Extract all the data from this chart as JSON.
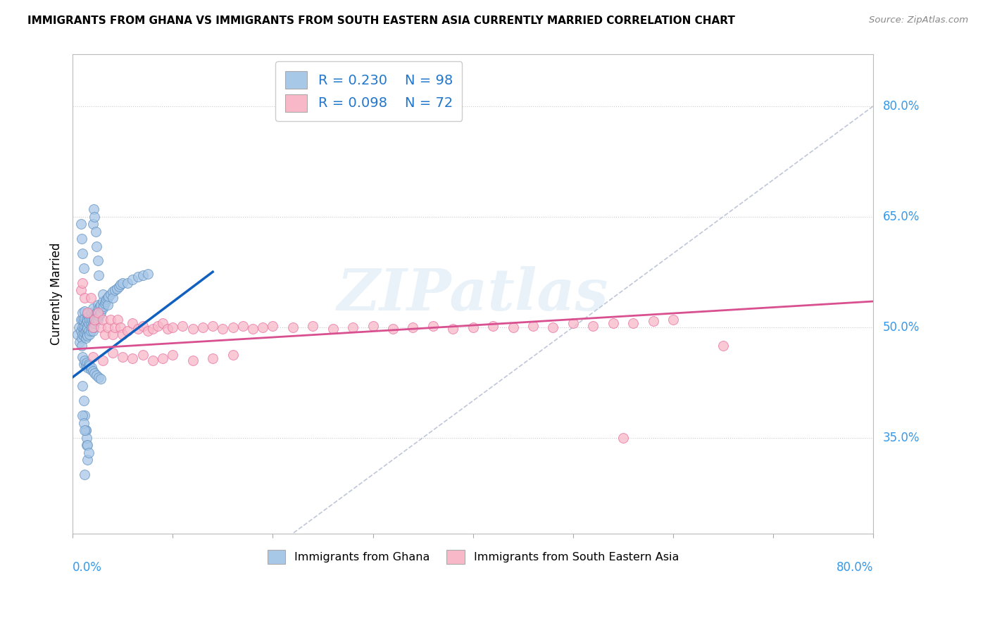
{
  "title": "IMMIGRANTS FROM GHANA VS IMMIGRANTS FROM SOUTH EASTERN ASIA CURRENTLY MARRIED CORRELATION CHART",
  "source": "Source: ZipAtlas.com",
  "ylabel": "Currently Married",
  "y_tick_labels": [
    "35.0%",
    "50.0%",
    "65.0%",
    "80.0%"
  ],
  "y_tick_values": [
    0.35,
    0.5,
    0.65,
    0.8
  ],
  "xlim": [
    0.0,
    0.8
  ],
  "ylim": [
    0.22,
    0.87
  ],
  "legend1_R": "0.230",
  "legend1_N": "98",
  "legend2_R": "0.098",
  "legend2_N": "72",
  "color_blue": "#a8c8e8",
  "color_pink": "#f8b8c8",
  "color_blue_edge": "#6090c0",
  "color_pink_edge": "#e870a0",
  "color_trendline_blue": "#1060c0",
  "color_trendline_pink": "#d85090",
  "color_diag": "#b0b8d0",
  "watermark": "ZIPatlas",
  "legend_label_1": "Immigrants from Ghana",
  "legend_label_2": "Immigrants from South Eastern Asia",
  "ghana_x": [
    0.005,
    0.006,
    0.007,
    0.008,
    0.008,
    0.009,
    0.009,
    0.01,
    0.01,
    0.01,
    0.01,
    0.011,
    0.011,
    0.011,
    0.012,
    0.012,
    0.012,
    0.012,
    0.013,
    0.013,
    0.013,
    0.014,
    0.014,
    0.014,
    0.015,
    0.015,
    0.015,
    0.015,
    0.016,
    0.016,
    0.016,
    0.017,
    0.017,
    0.018,
    0.018,
    0.018,
    0.019,
    0.019,
    0.019,
    0.02,
    0.02,
    0.02,
    0.02,
    0.021,
    0.021,
    0.022,
    0.022,
    0.023,
    0.023,
    0.024,
    0.024,
    0.025,
    0.025,
    0.025,
    0.026,
    0.026,
    0.027,
    0.027,
    0.028,
    0.028,
    0.03,
    0.03,
    0.03,
    0.031,
    0.032,
    0.033,
    0.034,
    0.035,
    0.035,
    0.036,
    0.038,
    0.04,
    0.04,
    0.042,
    0.044,
    0.046,
    0.048,
    0.05,
    0.055,
    0.06,
    0.065,
    0.07,
    0.075,
    0.01,
    0.011,
    0.012,
    0.013,
    0.014,
    0.015,
    0.016,
    0.017,
    0.018,
    0.019,
    0.02,
    0.022,
    0.024,
    0.026,
    0.028
  ],
  "ghana_y": [
    0.49,
    0.5,
    0.48,
    0.51,
    0.495,
    0.485,
    0.475,
    0.5,
    0.49,
    0.51,
    0.52,
    0.488,
    0.498,
    0.508,
    0.492,
    0.502,
    0.512,
    0.522,
    0.485,
    0.495,
    0.505,
    0.49,
    0.5,
    0.51,
    0.488,
    0.498,
    0.508,
    0.518,
    0.495,
    0.505,
    0.515,
    0.49,
    0.51,
    0.495,
    0.505,
    0.515,
    0.5,
    0.51,
    0.52,
    0.495,
    0.505,
    0.515,
    0.525,
    0.5,
    0.51,
    0.505,
    0.515,
    0.508,
    0.518,
    0.51,
    0.52,
    0.51,
    0.52,
    0.53,
    0.515,
    0.525,
    0.518,
    0.528,
    0.52,
    0.53,
    0.525,
    0.535,
    0.545,
    0.528,
    0.532,
    0.535,
    0.538,
    0.54,
    0.53,
    0.542,
    0.545,
    0.548,
    0.54,
    0.55,
    0.552,
    0.555,
    0.558,
    0.56,
    0.56,
    0.565,
    0.568,
    0.57,
    0.572,
    0.46,
    0.45,
    0.455,
    0.448,
    0.452,
    0.445,
    0.45,
    0.448,
    0.442,
    0.445,
    0.44,
    0.438,
    0.435,
    0.432,
    0.43
  ],
  "ghana_y_outliers": [
    0.64,
    0.62,
    0.6,
    0.58,
    0.42,
    0.4,
    0.38,
    0.36,
    0.34,
    0.32,
    0.3,
    0.36,
    0.35,
    0.34,
    0.33,
    0.38,
    0.37,
    0.36,
    0.64,
    0.66,
    0.65,
    0.63,
    0.61,
    0.59,
    0.57
  ],
  "ghana_x_outliers": [
    0.008,
    0.009,
    0.01,
    0.011,
    0.01,
    0.011,
    0.012,
    0.013,
    0.014,
    0.015,
    0.012,
    0.013,
    0.014,
    0.015,
    0.016,
    0.01,
    0.011,
    0.012,
    0.02,
    0.021,
    0.022,
    0.023,
    0.024,
    0.025,
    0.026
  ],
  "sea_x": [
    0.008,
    0.01,
    0.012,
    0.015,
    0.018,
    0.02,
    0.022,
    0.025,
    0.028,
    0.03,
    0.032,
    0.035,
    0.038,
    0.04,
    0.042,
    0.045,
    0.048,
    0.05,
    0.055,
    0.06,
    0.065,
    0.07,
    0.075,
    0.08,
    0.085,
    0.09,
    0.095,
    0.1,
    0.11,
    0.12,
    0.13,
    0.14,
    0.15,
    0.16,
    0.17,
    0.18,
    0.19,
    0.2,
    0.22,
    0.24,
    0.26,
    0.28,
    0.3,
    0.32,
    0.34,
    0.36,
    0.38,
    0.4,
    0.42,
    0.44,
    0.46,
    0.48,
    0.5,
    0.52,
    0.54,
    0.56,
    0.58,
    0.6,
    0.02,
    0.03,
    0.04,
    0.05,
    0.06,
    0.07,
    0.08,
    0.09,
    0.1,
    0.12,
    0.14,
    0.16,
    0.65,
    0.55
  ],
  "sea_y": [
    0.55,
    0.56,
    0.54,
    0.52,
    0.54,
    0.5,
    0.51,
    0.52,
    0.5,
    0.51,
    0.49,
    0.5,
    0.51,
    0.49,
    0.5,
    0.51,
    0.5,
    0.49,
    0.495,
    0.505,
    0.498,
    0.502,
    0.495,
    0.498,
    0.502,
    0.505,
    0.498,
    0.5,
    0.502,
    0.498,
    0.5,
    0.502,
    0.498,
    0.5,
    0.502,
    0.498,
    0.5,
    0.502,
    0.5,
    0.502,
    0.498,
    0.5,
    0.502,
    0.498,
    0.5,
    0.502,
    0.498,
    0.5,
    0.502,
    0.5,
    0.502,
    0.5,
    0.505,
    0.502,
    0.505,
    0.505,
    0.508,
    0.51,
    0.46,
    0.455,
    0.465,
    0.46,
    0.458,
    0.462,
    0.455,
    0.458,
    0.462,
    0.455,
    0.458,
    0.462,
    0.475,
    0.35
  ],
  "blue_trend_x": [
    0.0,
    0.14
  ],
  "blue_trend_y": [
    0.432,
    0.575
  ],
  "pink_trend_x": [
    0.0,
    0.8
  ],
  "pink_trend_y": [
    0.47,
    0.535
  ]
}
